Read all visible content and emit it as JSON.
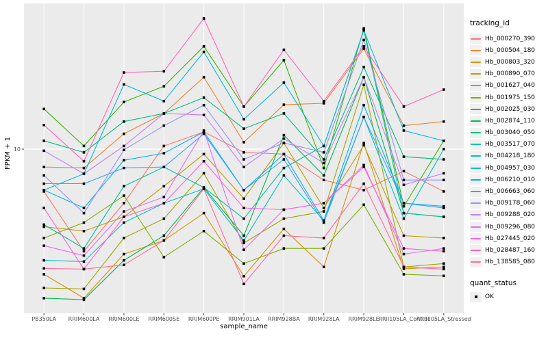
{
  "figure": {
    "xlabel": "sample_name",
    "ylabel": "FPKM + 1",
    "y_tick_label": "10",
    "legend_color_title": "tracking_id",
    "legend_shape_title": "quant_status",
    "legend_shape_ok_label": "OK"
  },
  "colors": {
    "panel_background": "#EBEBEB",
    "gridline": "#FFFFFF",
    "axis_text": "#4D4D4D",
    "axis_tick": "#333333",
    "marker": "#000000",
    "legend_key_background": "#F0F0F0"
  },
  "chart_data": {
    "type": "line",
    "title": "",
    "xlabel": "sample_name",
    "ylabel": "FPKM + 1",
    "x_type": "categorical",
    "y_scale": "log10",
    "y_tick_values": [
      10
    ],
    "ylim_approx": [
      1.3,
      60
    ],
    "grid": true,
    "legend_position": "right",
    "marker": "black-square",
    "quant_status": "OK",
    "categories": [
      "PB350LA",
      "RRIM600LA",
      "RRIM600LE",
      "RRIM600SE",
      "RRIM600PE",
      "RRIM901LA",
      "RRIM928BA",
      "RRIM928LA",
      "RRIM928LE",
      "RRII105LA_Control",
      "RRII105LA_Stressed"
    ],
    "series": [
      {
        "name": "Hb_000270_390",
        "color": "#F8766D",
        "values": [
          5.9,
          2.8,
          5.1,
          10.4,
          12.4,
          9.6,
          9.4,
          6.8,
          6.0,
          7.6,
          5.9
        ]
      },
      {
        "name": "Hb_000504_180",
        "color": "#EA8331",
        "values": [
          8.0,
          7.9,
          12.1,
          15.6,
          24.5,
          10.9,
          17.4,
          17.7,
          35.0,
          13.4,
          14.1
        ]
      },
      {
        "name": "Hb_000803_320",
        "color": "#D89000",
        "values": [
          2.1,
          1.56,
          2.7,
          3.2,
          4.5,
          2.05,
          3.7,
          2.3,
          10.8,
          2.25,
          2.3
        ]
      },
      {
        "name": "Hb_000890_070",
        "color": "#C09B00",
        "values": [
          3.8,
          3.6,
          4.3,
          6.3,
          9.4,
          5.4,
          10.8,
          4.8,
          10.5,
          3.4,
          3.3
        ]
      },
      {
        "name": "Hb_001627_040",
        "color": "#A3A500",
        "values": [
          1.77,
          1.75,
          3.3,
          4.2,
          7.4,
          3.1,
          4.2,
          4.6,
          22.3,
          2.3,
          2.4
        ]
      },
      {
        "name": "Hb_001975_150",
        "color": "#7CAE00",
        "values": [
          3.3,
          4.0,
          5.6,
          2.6,
          3.6,
          2.4,
          2.9,
          2.9,
          5.0,
          2.1,
          2.06
        ]
      },
      {
        "name": "Hb_002025_030",
        "color": "#39B600",
        "values": [
          16.5,
          10.4,
          18.0,
          21.9,
          36.0,
          17.0,
          30.3,
          7.9,
          45.0,
          4.9,
          11.1
        ]
      },
      {
        "name": "Hb_002874_110",
        "color": "#00BB4E",
        "values": [
          1.56,
          1.53,
          2.5,
          3.4,
          6.2,
          3.4,
          11.9,
          7.2,
          24.5,
          4.5,
          4.3
        ]
      },
      {
        "name": "Hb_003040_050",
        "color": "#00BF7D",
        "values": [
          11.1,
          9.6,
          14.1,
          15.6,
          19.0,
          12.9,
          15.6,
          8.8,
          27.8,
          9.1,
          8.8
        ]
      },
      {
        "name": "Hb_003517_070",
        "color": "#00C1A3",
        "values": [
          3.9,
          2.9,
          6.3,
          8.0,
          6.2,
          4.2,
          7.9,
          10.4,
          44.0,
          4.5,
          4.3
        ]
      },
      {
        "name": "Hb_004218_180",
        "color": "#00BFC4",
        "values": [
          2.5,
          2.46,
          4.0,
          5.1,
          6.1,
          3.2,
          7.2,
          4.1,
          14.9,
          4.2,
          10.0
        ]
      },
      {
        "name": "Hb_004957_030",
        "color": "#00BAE0",
        "values": [
          6.0,
          7.35,
          22.4,
          18.2,
          33.6,
          14.5,
          22.9,
          10.4,
          44.0,
          12.6,
          11.1
        ]
      },
      {
        "name": "Hb_006210_010",
        "color": "#00B0F6",
        "values": [
          6.0,
          4.8,
          8.7,
          9.5,
          12.4,
          6.0,
          9.4,
          4.1,
          17.3,
          5.1,
          4.9
        ]
      },
      {
        "name": "Hb_006663_060",
        "color": "#35A2FF",
        "values": [
          6.5,
          6.5,
          7.9,
          8.0,
          12.1,
          6.0,
          8.8,
          4.0,
          14.9,
          5.1,
          4.8
        ]
      },
      {
        "name": "Hb_009178_060",
        "color": "#9590FF",
        "values": [
          7.2,
          4.5,
          9.9,
          13.4,
          17.3,
          8.8,
          10.8,
          9.6,
          39.0,
          6.8,
          6.8
        ]
      },
      {
        "name": "Hb_009288_020",
        "color": "#C77CFF",
        "values": [
          9.8,
          7.35,
          10.4,
          15.6,
          15.3,
          8.0,
          11.4,
          8.4,
          24.5,
          6.4,
          7.4
        ]
      },
      {
        "name": "Hb_009296_080",
        "color": "#E76BF3",
        "values": [
          3.0,
          2.65,
          4.6,
          5.5,
          12.6,
          2.85,
          4.7,
          5.1,
          8.2,
          2.7,
          2.9
        ]
      },
      {
        "name": "Hb_027445_020",
        "color": "#FA62DB",
        "values": [
          4.8,
          2.24,
          4.3,
          5.1,
          8.6,
          4.8,
          4.7,
          5.1,
          8.0,
          2.9,
          2.8
        ]
      },
      {
        "name": "Hb_028487_160",
        "color": "#FF62BC",
        "values": [
          13.5,
          8.6,
          26.0,
          26.4,
          51.0,
          17.0,
          34.5,
          18.2,
          36.0,
          17.0,
          21.0
        ]
      },
      {
        "name": "Hb_138585_080",
        "color": "#FF6A98",
        "values": [
          2.26,
          2.24,
          2.36,
          3.2,
          6.1,
          1.86,
          3.4,
          3.3,
          6.5,
          2.3,
          2.24
        ]
      }
    ]
  }
}
